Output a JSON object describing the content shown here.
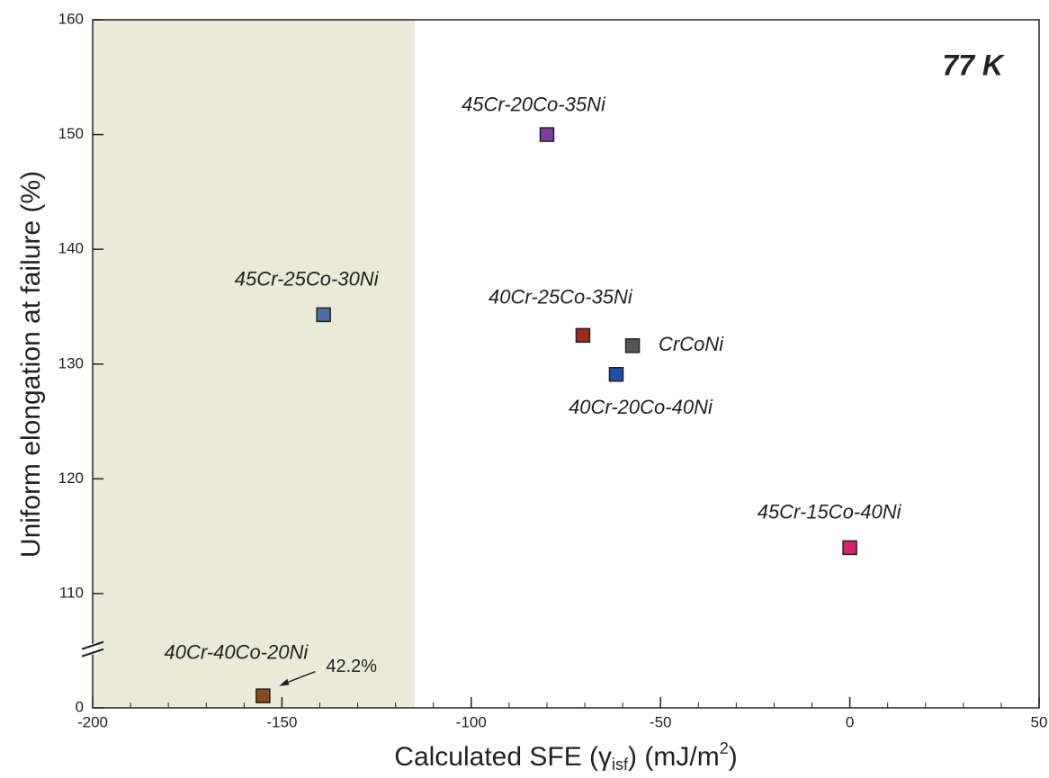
{
  "chart_data": {
    "type": "scatter",
    "annotation": "77 K",
    "x_label_parts": [
      "Calculated SFE (γ",
      "isf",
      ") (mJ/m",
      "2",
      ")"
    ],
    "y_label": "Uniform elongation at failure (%)",
    "xlim": [
      -200,
      50
    ],
    "xticks": [
      -200,
      -150,
      -100,
      -50,
      0,
      50
    ],
    "xminor_step": 10,
    "ylim": [
      0,
      160
    ],
    "ybreak": [
      200,
      105
    ],
    "yticks": [
      0,
      110,
      120,
      130,
      140,
      150,
      160
    ],
    "yminor_step": 5,
    "shaded_xrange": [
      -200,
      -115
    ],
    "shade_color": "#e9ebd6",
    "points": [
      {
        "label": "45Cr-20Co-35Ni",
        "x": -80,
        "y": 150,
        "color": "#7b3fa0"
      },
      {
        "label": "45Cr-25Co-30Ni",
        "x": -139,
        "y": 134.3,
        "color": "#4a6fa0"
      },
      {
        "label": "40Cr-25Co-35Ni",
        "x": -70.5,
        "y": 132.5,
        "color": "#9b2a22"
      },
      {
        "label": "CrCoNi",
        "x": -57.4,
        "y": 131.6,
        "color": "#555555"
      },
      {
        "label": "40Cr-20Co-40Ni",
        "x": -61.7,
        "y": 129.1,
        "color": "#1f4fa8"
      },
      {
        "label": "45Cr-15Co-40Ni",
        "x": 0,
        "y": 114,
        "color": "#d6246e"
      },
      {
        "label": "40Cr-40Co-20Ni",
        "x": -155,
        "y": 42.2,
        "value_label": "42.2%",
        "color": "#8b4a22"
      }
    ]
  }
}
